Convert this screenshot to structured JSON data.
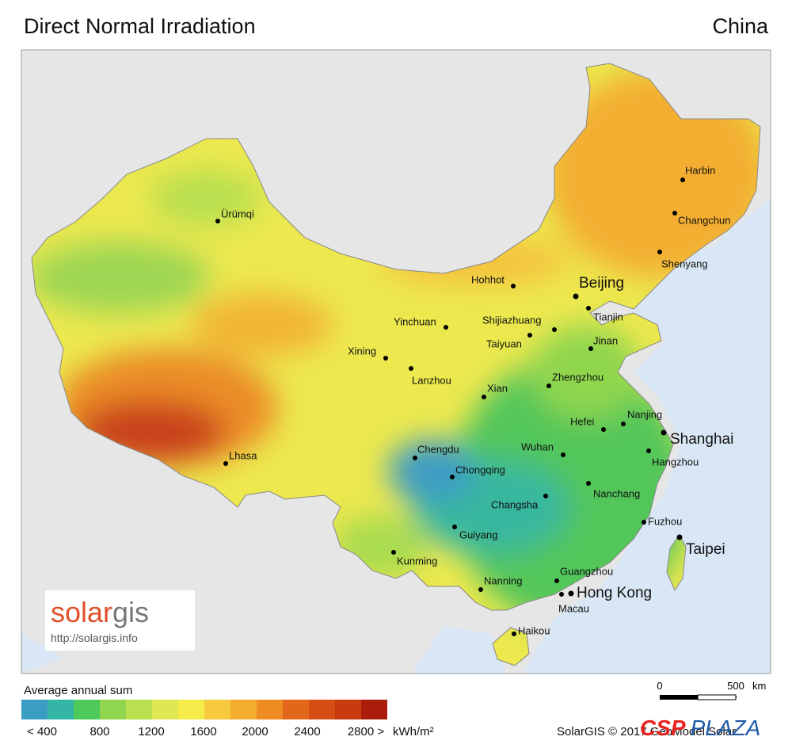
{
  "header": {
    "title": "Direct Normal Irradiation",
    "region": "China"
  },
  "cities": [
    {
      "label": "Ürümqi"
    },
    {
      "label": "Harbin"
    },
    {
      "label": "Changchun"
    },
    {
      "label": "Shenyang"
    },
    {
      "label": "Hohhot"
    },
    {
      "label": "Beijing"
    },
    {
      "label": "Tianjin"
    },
    {
      "label": "Yinchuan"
    },
    {
      "label": "Shijiazhuang"
    },
    {
      "label": "Taiyuan"
    },
    {
      "label": "Jinan"
    },
    {
      "label": "Xining"
    },
    {
      "label": "Lanzhou"
    },
    {
      "label": "Zhengzhou"
    },
    {
      "label": "Xian"
    },
    {
      "label": "Hefei"
    },
    {
      "label": "Nanjing"
    },
    {
      "label": "Shanghai"
    },
    {
      "label": "Chengdu"
    },
    {
      "label": "Wuhan"
    },
    {
      "label": "Hangzhou"
    },
    {
      "label": "Chongqing"
    },
    {
      "label": "Lhasa"
    },
    {
      "label": "Nanchang"
    },
    {
      "label": "Changsha"
    },
    {
      "label": "Fuzhou"
    },
    {
      "label": "Guiyang"
    },
    {
      "label": "Taipei"
    },
    {
      "label": "Kunming"
    },
    {
      "label": "Guangzhou"
    },
    {
      "label": "Nanning"
    },
    {
      "label": "Hong Kong"
    },
    {
      "label": "Macau"
    },
    {
      "label": "Haikou"
    }
  ],
  "logo": {
    "part1": "solar",
    "part2": "gis",
    "url": "http://solargis.info"
  },
  "legend": {
    "title": "Average annual sum",
    "labels": [
      "< 400",
      "800",
      "1200",
      "1600",
      "2000",
      "2400",
      "2800 >"
    ],
    "unit": "kWh/m²"
  },
  "scale": {
    "start": "0",
    "end": "500",
    "unit": "km"
  },
  "credit": "SolarGIS © 2017 GeoModel Solar",
  "watermark": {
    "part1": "CSP",
    "part2": "PLAZA"
  }
}
